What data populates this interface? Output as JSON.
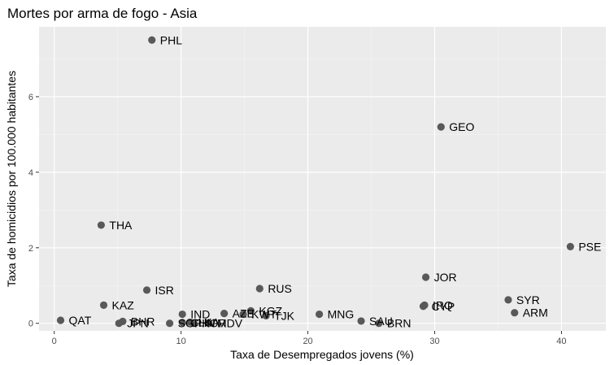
{
  "chart_data": {
    "type": "scatter",
    "title": "Mortes por arma de fogo - Asia",
    "xlabel": "Taxa de Desempregados jovens (%)",
    "ylabel": "Taxa de homicidios por 100.000 habitantes",
    "xlim": [
      -1.2,
      43.5
    ],
    "ylim": [
      -0.2,
      7.85
    ],
    "xticks": [
      0,
      10,
      20,
      30,
      40
    ],
    "yticks": [
      0,
      2,
      4,
      6
    ],
    "grid": true,
    "background": "#ebebeb",
    "grid_major_color": "#ffffff",
    "point_color": "#595959",
    "points": [
      {
        "label": "PHL",
        "x": 7.7,
        "y": 7.5
      },
      {
        "label": "GEO",
        "x": 30.5,
        "y": 5.2
      },
      {
        "label": "THA",
        "x": 3.7,
        "y": 2.6
      },
      {
        "label": "PSE",
        "x": 40.7,
        "y": 2.03
      },
      {
        "label": "JOR",
        "x": 29.3,
        "y": 1.22
      },
      {
        "label": "RUS",
        "x": 16.2,
        "y": 0.92
      },
      {
        "label": "ISR",
        "x": 7.3,
        "y": 0.88
      },
      {
        "label": "SYR",
        "x": 35.8,
        "y": 0.62
      },
      {
        "label": "KAZ",
        "x": 3.9,
        "y": 0.48
      },
      {
        "label": "IRQ",
        "x": 29.2,
        "y": 0.48
      },
      {
        "label": "CYP",
        "x": 29.1,
        "y": 0.45
      },
      {
        "label": "KGZ",
        "x": 15.5,
        "y": 0.33
      },
      {
        "label": "ARM",
        "x": 36.3,
        "y": 0.28
      },
      {
        "label": "AZE",
        "x": 13.4,
        "y": 0.26
      },
      {
        "label": "KWT",
        "x": 14.9,
        "y": 0.24
      },
      {
        "label": "TJK",
        "x": 16.7,
        "y": 0.2
      },
      {
        "label": "IND",
        "x": 10.1,
        "y": 0.24
      },
      {
        "label": "MNG",
        "x": 20.9,
        "y": 0.24
      },
      {
        "label": "QAT",
        "x": 0.5,
        "y": 0.08
      },
      {
        "label": "BHR",
        "x": 5.4,
        "y": 0.05
      },
      {
        "label": "JPN",
        "x": 5.1,
        "y": 0.0
      },
      {
        "label": "SAU",
        "x": 24.2,
        "y": 0.06
      },
      {
        "label": "BRN",
        "x": 25.6,
        "y": 0.0
      },
      {
        "label": "SGP",
        "x": 9.1,
        "y": 0.0
      },
      {
        "label": "CHN",
        "x": 10.1,
        "y": 0.02
      },
      {
        "label": "LKA",
        "x": 10.7,
        "y": 0.03
      },
      {
        "label": "KOR",
        "x": 11.0,
        "y": 0.0
      },
      {
        "label": "MDV",
        "x": 12.2,
        "y": 0.0
      }
    ]
  }
}
